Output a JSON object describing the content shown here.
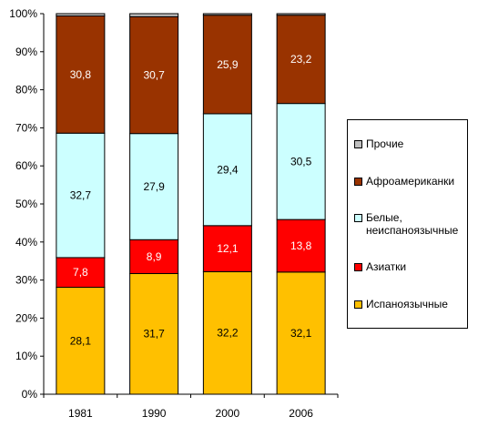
{
  "chart_data": {
    "type": "bar",
    "stacked": true,
    "percent": true,
    "categories": [
      "1981",
      "1990",
      "2000",
      "2006"
    ],
    "ylim": [
      0,
      100
    ],
    "yticks": [
      "0%",
      "10%",
      "20%",
      "30%",
      "40%",
      "50%",
      "60%",
      "70%",
      "80%",
      "90%",
      "100%"
    ],
    "grid": false,
    "legend_position": "right",
    "series": [
      {
        "name": "Испаноязычные",
        "color": "#FFC000",
        "values": [
          28.1,
          31.7,
          32.2,
          32.1
        ],
        "labels": [
          "28,1",
          "31,7",
          "32,2",
          "32,1"
        ]
      },
      {
        "name": "Азиатки",
        "color": "#FF0000",
        "values": [
          7.8,
          8.9,
          12.1,
          13.8
        ],
        "labels": [
          "7,8",
          "8,9",
          "12,1",
          "13,8"
        ]
      },
      {
        "name": "Белые, неиспаноязычные",
        "color": "#CCFFFF",
        "values": [
          32.7,
          27.9,
          29.4,
          30.5
        ],
        "labels": [
          "32,7",
          "27,9",
          "29,4",
          "30,5"
        ]
      },
      {
        "name": "Афроамериканки",
        "color": "#993300",
        "values": [
          30.8,
          30.7,
          25.9,
          23.2
        ],
        "labels": [
          "30,8",
          "30,7",
          "25,9",
          "23,2"
        ]
      },
      {
        "name": "Прочие",
        "color": "#C0C0C0",
        "values": [
          0.6,
          0.8,
          0.4,
          0.4
        ],
        "labels": [
          "",
          "",
          "",
          ""
        ]
      }
    ]
  }
}
